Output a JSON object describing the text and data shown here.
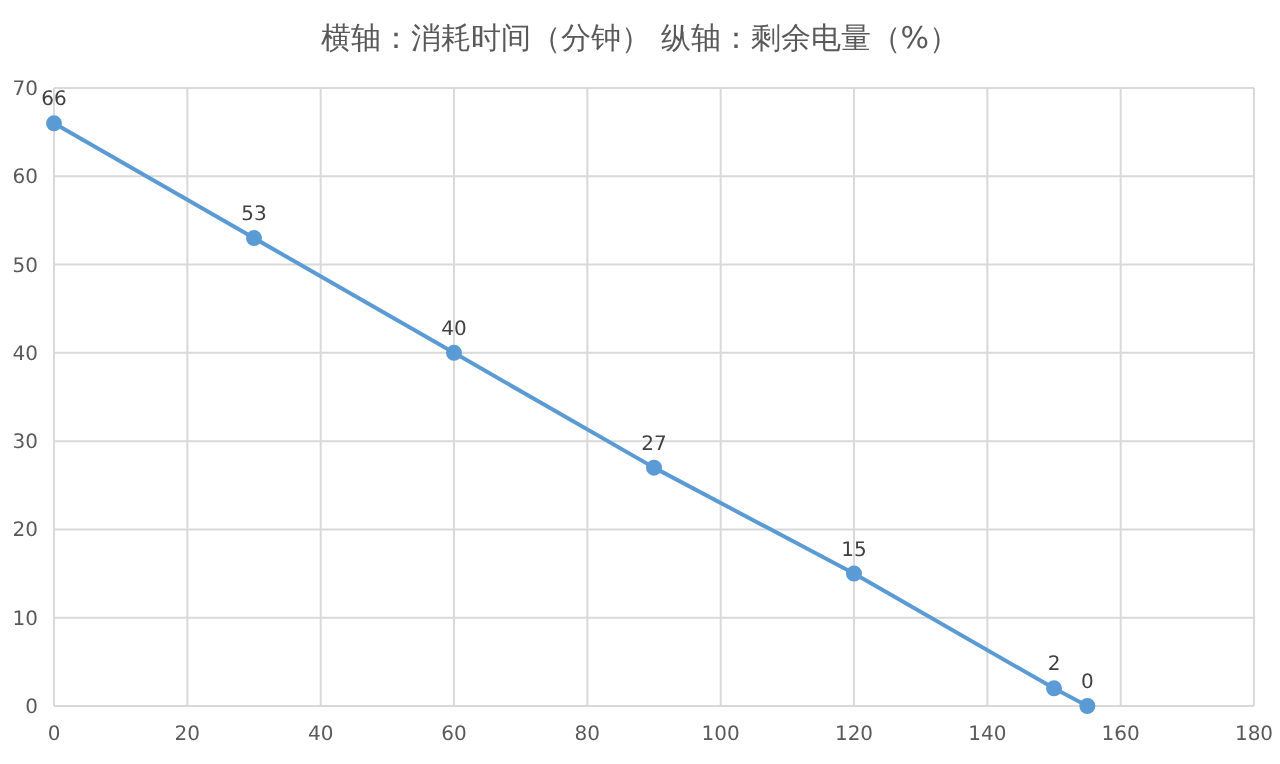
{
  "chart_data": {
    "type": "line",
    "title": "横轴：消耗时间（分钟） 纵轴：剩余电量（%）",
    "x": [
      0,
      30,
      60,
      90,
      120,
      150,
      155
    ],
    "series": [
      {
        "color": "#5b9bd5",
        "values": [
          66,
          53,
          40,
          27,
          15,
          2,
          0
        ]
      }
    ],
    "xlim": [
      0,
      180
    ],
    "xticks": [
      0,
      20,
      40,
      60,
      80,
      100,
      120,
      140,
      160,
      180
    ],
    "ylim": [
      0,
      70
    ],
    "yticks": [
      0,
      10,
      20,
      30,
      40,
      50,
      60,
      70
    ],
    "grid": true,
    "marker": "circle",
    "line_style": "solid",
    "data_labels": true
  }
}
